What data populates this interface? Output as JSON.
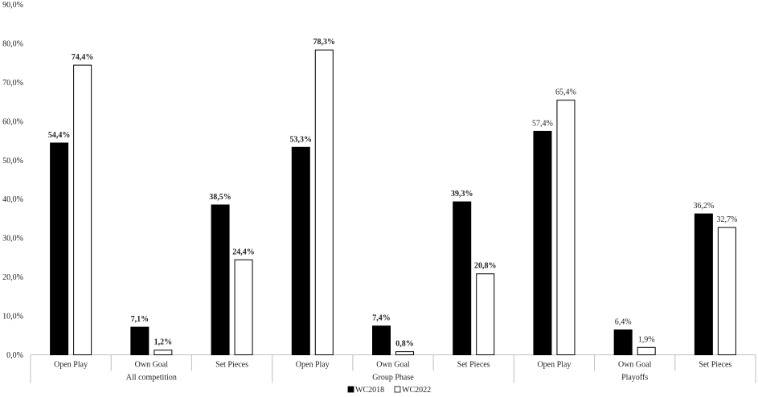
{
  "chart_data": {
    "type": "bar",
    "title": "",
    "xlabel": "",
    "ylabel": "",
    "ylim": [
      0,
      90
    ],
    "yticks": [
      "0,0%",
      "10,0%",
      "20,0%",
      "30,0%",
      "40,0%",
      "50,0%",
      "60,0%",
      "70,0%",
      "80,0%",
      "90,0%"
    ],
    "grid": false,
    "legend_position": "bottom-center",
    "groups": [
      {
        "name": "All competition",
        "categories": [
          "Open Play",
          "Own Goal",
          "Set Pieces"
        ],
        "labels_bold": true
      },
      {
        "name": "Group Phase",
        "categories": [
          "Open Play",
          "Own Goal",
          "Set Pieces"
        ],
        "labels_bold": true
      },
      {
        "name": "Playoffs",
        "categories": [
          "Open Play",
          "Own Goal",
          "Set Pieces"
        ],
        "labels_bold": false
      }
    ],
    "series": [
      {
        "name": "WC2018",
        "color": "#000000",
        "values": [
          54.4,
          7.1,
          38.5,
          53.3,
          7.4,
          39.3,
          57.4,
          6.4,
          36.2
        ],
        "labels": [
          "54,4%",
          "7,1%",
          "38,5%",
          "53,3%",
          "7,4%",
          "39,3%",
          "57,4%",
          "6,4%",
          "36,2%"
        ]
      },
      {
        "name": "WC2022",
        "color": "#ffffff",
        "values": [
          74.4,
          1.2,
          24.4,
          78.3,
          0.8,
          20.8,
          65.4,
          1.9,
          32.7
        ],
        "labels": [
          "74,4%",
          "1,2%",
          "24,4%",
          "78,3%",
          "0,8%",
          "20,8%",
          "65,4%",
          "1,9%",
          "32,7%"
        ]
      }
    ]
  }
}
